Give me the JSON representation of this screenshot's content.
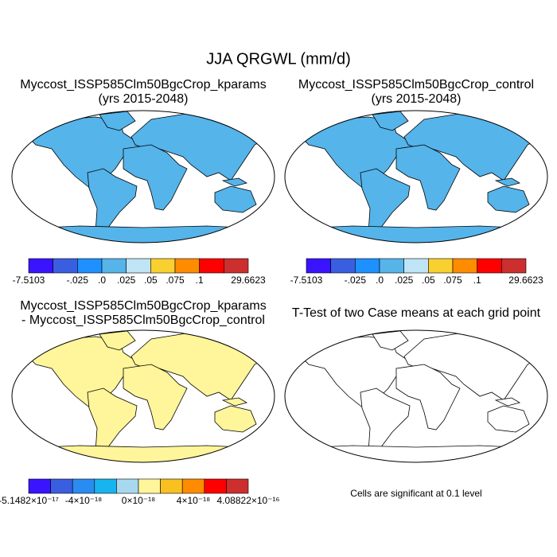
{
  "title": "JJA QRGWL (mm/d)",
  "panels": [
    {
      "title": "Myccost_ISSP585Clm50BgcCrop_kparams",
      "subtitle": "(yrs 2015-2048)",
      "land_color": "#55b4ea",
      "colorbar": {
        "colors": [
          "#3a14ff",
          "#3a5ee0",
          "#1e90ff",
          "#56b4e9",
          "#bfe4f5",
          "#f8d030",
          "#ff8c00",
          "#ff0000",
          "#cd2e2e"
        ],
        "labels": [
          "-7.5103",
          "-.025",
          ".0",
          ".025",
          ".05",
          ".075",
          ".1",
          "29.6623"
        ]
      }
    },
    {
      "title": "Myccost_ISSP585Clm50BgcCrop_control",
      "subtitle": "(yrs 2015-2048)",
      "land_color": "#55b4ea",
      "colorbar": {
        "colors": [
          "#3a14ff",
          "#3a5ee0",
          "#1e90ff",
          "#56b4e9",
          "#bfe4f5",
          "#f8d030",
          "#ff8c00",
          "#ff0000",
          "#cd2e2e"
        ],
        "labels": [
          "-7.5103",
          "-.025",
          ".0",
          ".025",
          ".05",
          ".075",
          ".1",
          "29.6623"
        ]
      }
    },
    {
      "title": "Myccost_ISSP585Clm50BgcCrop_kparams",
      "subtitle": "- Myccost_ISSP585Clm50BgcCrop_control",
      "land_color": "#fff59a",
      "colorbar": {
        "colors": [
          "#3a14ff",
          "#3a5ee0",
          "#2a8cf0",
          "#18b4f0",
          "#a8d8f0",
          "#fff59a",
          "#f8c020",
          "#ff8c00",
          "#ff0000",
          "#cd2e2e"
        ],
        "labels": [
          "-5.1482×10⁻¹⁷",
          "-4×10⁻¹⁸",
          "0×10⁻¹⁸",
          "4×10⁻¹⁸",
          "4.08822×10⁻¹⁶"
        ]
      }
    },
    {
      "title": "T-Test of two Case means at each grid point",
      "note": "Cells are significant at 0.1 level",
      "land_color": "#ffffff"
    }
  ]
}
